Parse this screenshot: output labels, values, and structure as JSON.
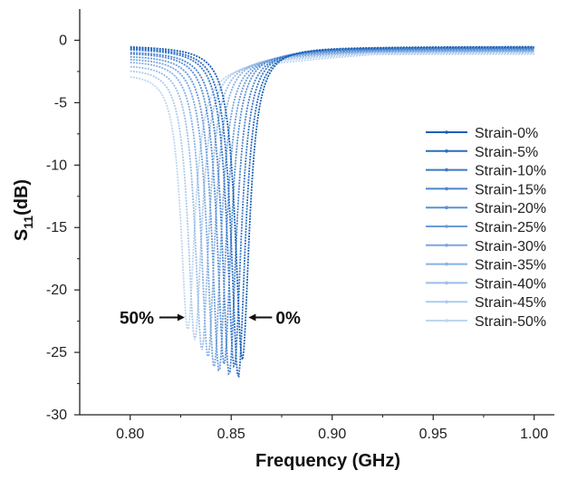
{
  "chart_data": {
    "type": "line",
    "title": "",
    "xlabel": "Frequency (GHz)",
    "ylabel_main": "S",
    "ylabel_sub": "11",
    "ylabel_suffix": "(dB)",
    "xlim": [
      0.775,
      1.01
    ],
    "ylim": [
      -30,
      2.5
    ],
    "x_ticks": [
      0.8,
      0.85,
      0.9,
      0.95,
      1.0
    ],
    "x_tick_labels": [
      "0.80",
      "0.85",
      "0.90",
      "0.95",
      "1.00"
    ],
    "y_ticks": [
      0,
      -5,
      -10,
      -15,
      -20,
      -25,
      -30
    ],
    "y_tick_labels": [
      "0",
      "-5",
      "-10",
      "-15",
      "-20",
      "-25",
      "-30"
    ],
    "grid": false,
    "legend_position": "right",
    "annotations": [
      {
        "text": "50%",
        "x": 0.827,
        "y": -22.2,
        "arrow": "right"
      },
      {
        "text": "0%",
        "x": 0.855,
        "y": -22.2,
        "arrow": "left"
      }
    ],
    "series": [
      {
        "name": "Strain-0%",
        "color": "#1a5fb4",
        "resonance_ghz": 0.8555,
        "min_db": -25.6,
        "start_db": -0.4,
        "end_db": -0.5
      },
      {
        "name": "Strain-5%",
        "color": "#2a6cc0",
        "resonance_ghz": 0.8535,
        "min_db": -27.0,
        "start_db": -0.5,
        "end_db": -0.55
      },
      {
        "name": "Strain-10%",
        "color": "#3b78c8",
        "resonance_ghz": 0.8515,
        "min_db": -26.2,
        "start_db": -0.6,
        "end_db": -0.6
      },
      {
        "name": "Strain-15%",
        "color": "#4a85cf",
        "resonance_ghz": 0.849,
        "min_db": -26.8,
        "start_db": -0.8,
        "end_db": -0.65
      },
      {
        "name": "Strain-20%",
        "color": "#5a90d4",
        "resonance_ghz": 0.8465,
        "min_db": -26.0,
        "start_db": -0.9,
        "end_db": -0.7
      },
      {
        "name": "Strain-25%",
        "color": "#6a9bd9",
        "resonance_ghz": 0.844,
        "min_db": -26.5,
        "start_db": -1.1,
        "end_db": -0.75
      },
      {
        "name": "Strain-30%",
        "color": "#7aa7de",
        "resonance_ghz": 0.8415,
        "min_db": -26.2,
        "start_db": -1.3,
        "end_db": -0.8
      },
      {
        "name": "Strain-35%",
        "color": "#8ab2e3",
        "resonance_ghz": 0.8385,
        "min_db": -25.4,
        "start_db": -1.5,
        "end_db": -0.85
      },
      {
        "name": "Strain-40%",
        "color": "#9bbee7",
        "resonance_ghz": 0.8355,
        "min_db": -24.8,
        "start_db": -1.8,
        "end_db": -0.9
      },
      {
        "name": "Strain-45%",
        "color": "#accbec",
        "resonance_ghz": 0.832,
        "min_db": -24.0,
        "start_db": -2.1,
        "end_db": -1.0
      },
      {
        "name": "Strain-50%",
        "color": "#bdd6f0",
        "resonance_ghz": 0.8285,
        "min_db": -23.2,
        "start_db": -2.5,
        "end_db": -1.1
      }
    ]
  }
}
